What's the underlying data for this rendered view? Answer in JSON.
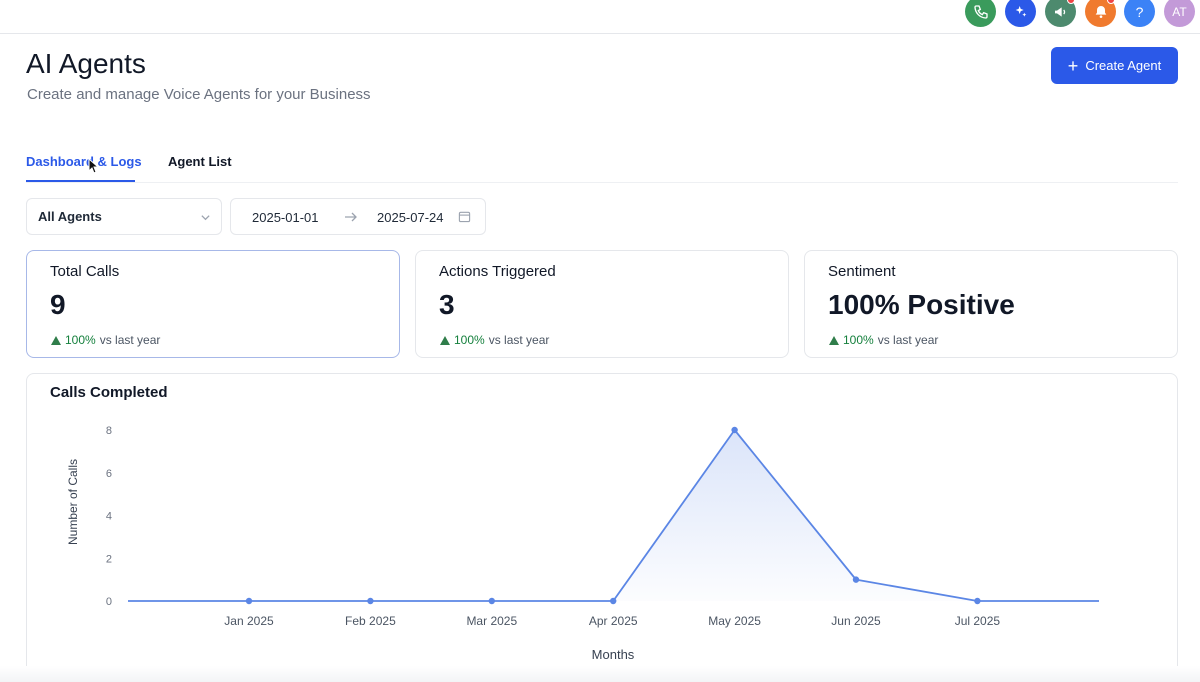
{
  "topbar": {
    "icons": [
      {
        "name": "phone-icon",
        "color": "#3a9b5c"
      },
      {
        "name": "sparkle-icon",
        "color": "#2b59e8"
      },
      {
        "name": "megaphone-icon",
        "color": "#4d8a6e"
      },
      {
        "name": "bell-icon",
        "color": "#f07a2e"
      },
      {
        "name": "help-icon",
        "color": "#3b82f6",
        "glyph": "?"
      }
    ],
    "avatar": {
      "initials": "AT",
      "color": "#c39ad8"
    }
  },
  "header": {
    "title": "AI Agents",
    "subtitle": "Create and manage Voice Agents for your Business",
    "create_button": "Create Agent"
  },
  "tabs": [
    {
      "label": "Dashboard & Logs",
      "active": true
    },
    {
      "label": "Agent List",
      "active": false
    }
  ],
  "filters": {
    "agent_select": "All Agents",
    "date_start": "2025-01-01",
    "date_end": "2025-07-24"
  },
  "cards": [
    {
      "label": "Total Calls",
      "value": "9",
      "change": "100%",
      "change_text": "vs last year"
    },
    {
      "label": "Actions Triggered",
      "value": "3",
      "change": "100%",
      "change_text": "vs last year"
    },
    {
      "label": "Sentiment",
      "value": "100% Positive",
      "change": "100%",
      "change_text": "vs last year"
    }
  ],
  "chart_data": {
    "type": "area",
    "title": "Calls Completed",
    "xlabel": "Months",
    "ylabel": "Number of Calls",
    "x": [
      "Jan 2025",
      "Feb 2025",
      "Mar 2025",
      "Apr 2025",
      "May 2025",
      "Jun 2025",
      "Jul 2025"
    ],
    "values": [
      0,
      0,
      0,
      0,
      8,
      1,
      0
    ],
    "yticks": [
      0,
      2,
      4,
      6,
      8
    ],
    "ylim": [
      0,
      8
    ],
    "color": "#5b86e5",
    "grid": false
  }
}
